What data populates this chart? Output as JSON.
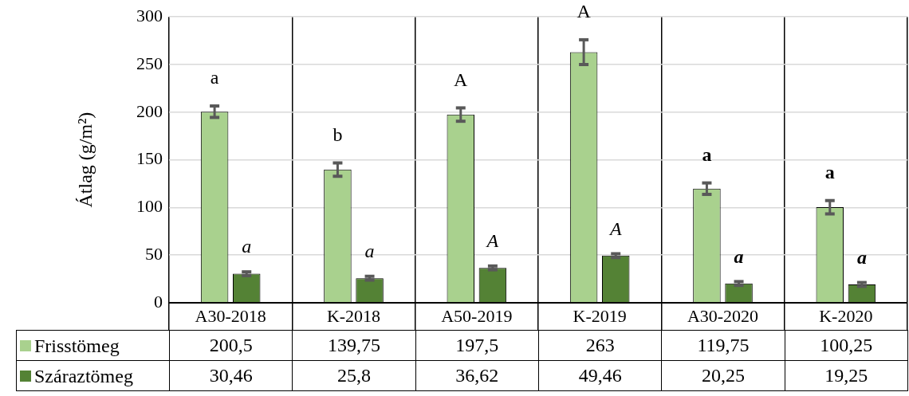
{
  "chart_data": {
    "type": "bar",
    "ylabel": "Átlag (g/m²)",
    "categories": [
      "A30-2018",
      "K-2018",
      "A50-2019",
      "K-2019",
      "A30-2020",
      "K-2020"
    ],
    "series": [
      {
        "name": "Frisstömeg",
        "color": "#a9d18e",
        "values": [
          200.5,
          139.75,
          197.5,
          263,
          119.75,
          100.25
        ],
        "errors": [
          6,
          7,
          7,
          13,
          6,
          7
        ],
        "value_labels": [
          "200,5",
          "139,75",
          "197,5",
          "263",
          "119,75",
          "100,25"
        ]
      },
      {
        "name": "Száraztömeg",
        "color": "#548235",
        "values": [
          30.46,
          25.8,
          36.62,
          49.46,
          20.25,
          19.25
        ],
        "errors": [
          2,
          2,
          2,
          2,
          2,
          2
        ],
        "value_labels": [
          "30,46",
          "25,8",
          "36,62",
          "49,46",
          "20,25",
          "19,25"
        ]
      }
    ],
    "ylim": [
      0,
      300
    ],
    "yticks": [
      0,
      50,
      100,
      150,
      200,
      250,
      300
    ],
    "grid": true,
    "legend": "bottom",
    "annotations": [
      {
        "text": "a",
        "x": "A30-2018",
        "y": 200.5
      },
      {
        "text": "a",
        "x": "A30-2018",
        "y": 30.46
      },
      {
        "text": "b",
        "x": "K-2018",
        "y": 139.75
      },
      {
        "text": "a",
        "x": "K-2018",
        "y": 25.8
      },
      {
        "text": "A",
        "x": "A50-2019",
        "y": 197.5
      },
      {
        "text": "A",
        "x": "A50-2019",
        "y": 36.62
      },
      {
        "text": "A",
        "x": "K-2019",
        "y": 263
      },
      {
        "text": "A",
        "x": "K-2019",
        "y": 49.46
      },
      {
        "text": "a",
        "x": "A30-2020",
        "y": 119.75
      },
      {
        "text": "a",
        "x": "A30-2020",
        "y": 20.25
      },
      {
        "text": "a",
        "x": "K-2020",
        "y": 100.25
      },
      {
        "text": "a",
        "x": "K-2020",
        "y": 19.25
      }
    ]
  }
}
